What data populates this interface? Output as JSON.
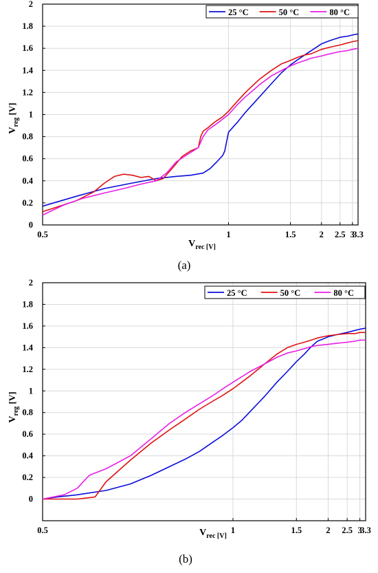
{
  "legend_labels": [
    "25 °C",
    "50 °C",
    "80 °C"
  ],
  "colors": {
    "25": "#0b0bdc",
    "50": "#e01010",
    "80": "#e61ee6",
    "grid": "#d9d9d9",
    "axis": "#000000"
  },
  "chart_data": [
    {
      "type": "line",
      "caption": "(a)",
      "ylabel": {
        "main": "V",
        "sub": "reg",
        "unit": "[V]"
      },
      "xlabel": {
        "main": "V",
        "sub": "rec [V]"
      },
      "xlim": [
        0.5,
        3.3
      ],
      "ylim": [
        0,
        2
      ],
      "x_scale": "reciprocal",
      "grid": true,
      "legend": "top-right",
      "xticks": [
        0.5,
        1,
        1.5,
        2,
        2.5,
        3,
        3.3
      ],
      "xtick_labels": [
        "0.5",
        "1",
        "1.5",
        "2",
        "2.5",
        "3",
        "3.3"
      ],
      "yticks": [
        0,
        0.2,
        0.4,
        0.6,
        0.8,
        1,
        1.2,
        1.4,
        1.6,
        1.8,
        2
      ],
      "ytick_labels": [
        "0",
        "0.2",
        "0.4",
        "0.6",
        "0.8",
        "1",
        "1.2",
        "1.4",
        "1.6",
        "1.8",
        "2"
      ],
      "series": [
        {
          "name": "25 °C",
          "color_key": "25",
          "x": [
            0.5,
            0.55,
            0.6,
            0.66,
            0.72,
            0.78,
            0.83,
            0.88,
            0.91,
            0.94,
            0.97,
            0.98,
            1.0,
            1.05,
            1.1,
            1.2,
            1.3,
            1.4,
            1.5,
            1.6,
            1.75,
            1.9,
            2.0,
            2.2,
            2.5,
            2.8,
            3.0,
            3.3
          ],
          "y": [
            0.17,
            0.26,
            0.33,
            0.38,
            0.42,
            0.44,
            0.45,
            0.47,
            0.51,
            0.57,
            0.63,
            0.67,
            0.84,
            0.93,
            1.02,
            1.16,
            1.28,
            1.38,
            1.45,
            1.5,
            1.56,
            1.61,
            1.64,
            1.67,
            1.7,
            1.71,
            1.72,
            1.73
          ]
        },
        {
          "name": "50 °C",
          "color_key": "50",
          "x": [
            0.5,
            0.55,
            0.58,
            0.6,
            0.62,
            0.64,
            0.66,
            0.68,
            0.7,
            0.72,
            0.74,
            0.77,
            0.8,
            0.83,
            0.86,
            0.87,
            0.88,
            0.9,
            0.93,
            0.97,
            1.0,
            1.05,
            1.1,
            1.2,
            1.3,
            1.4,
            1.5,
            1.6,
            1.7,
            1.8,
            2.0,
            2.2,
            2.5,
            2.8,
            3.0,
            3.3
          ],
          "y": [
            0.12,
            0.22,
            0.3,
            0.38,
            0.44,
            0.46,
            0.45,
            0.43,
            0.44,
            0.4,
            0.42,
            0.52,
            0.62,
            0.67,
            0.7,
            0.8,
            0.85,
            0.88,
            0.93,
            0.98,
            1.03,
            1.12,
            1.2,
            1.32,
            1.4,
            1.46,
            1.49,
            1.52,
            1.54,
            1.55,
            1.59,
            1.61,
            1.63,
            1.65,
            1.66,
            1.67
          ]
        },
        {
          "name": "80 °C",
          "color_key": "80",
          "x": [
            0.5,
            0.53,
            0.56,
            0.6,
            0.64,
            0.68,
            0.72,
            0.75,
            0.78,
            0.82,
            0.86,
            0.88,
            0.9,
            0.95,
            1.0,
            1.05,
            1.1,
            1.2,
            1.3,
            1.4,
            1.5,
            1.6,
            1.7,
            1.8,
            2.0,
            2.2,
            2.5,
            2.8,
            3.0,
            3.3
          ],
          "y": [
            0.09,
            0.18,
            0.24,
            0.29,
            0.33,
            0.37,
            0.4,
            0.47,
            0.57,
            0.64,
            0.7,
            0.8,
            0.86,
            0.93,
            1.0,
            1.09,
            1.16,
            1.27,
            1.35,
            1.4,
            1.44,
            1.47,
            1.49,
            1.51,
            1.53,
            1.55,
            1.57,
            1.58,
            1.59,
            1.6
          ]
        }
      ]
    },
    {
      "type": "line",
      "caption": "(b)",
      "ylabel": {
        "main": "V",
        "sub": "reg",
        "unit": "[V]"
      },
      "xlabel": {
        "main": "V",
        "sub": "rec [V]"
      },
      "xlim": [
        0.5,
        3.3
      ],
      "ylim": [
        -0.2,
        2
      ],
      "x_scale": "reciprocal",
      "grid": true,
      "legend": "top-right",
      "xticks": [
        0.5,
        1,
        1.5,
        2,
        2.5,
        3,
        3.3
      ],
      "xtick_labels": [
        "0.5",
        "1",
        "1.5",
        "2",
        "2.5",
        "3",
        "3.3"
      ],
      "yticks": [
        0,
        0.2,
        0.4,
        0.6,
        0.8,
        1,
        1.2,
        1.4,
        1.6,
        1.8,
        2
      ],
      "ytick_labels": [
        "0",
        "0.2",
        "0.4",
        "0.6",
        "0.8",
        "1",
        "1.2",
        "1.4",
        "1.6",
        "1.8",
        "2"
      ],
      "series": [
        {
          "name": "25 °C",
          "color_key": "25",
          "x": [
            0.5,
            0.52,
            0.55,
            0.6,
            0.65,
            0.7,
            0.75,
            0.8,
            0.85,
            0.9,
            0.95,
            1.0,
            1.05,
            1.1,
            1.2,
            1.3,
            1.4,
            1.5,
            1.6,
            1.7,
            1.8,
            1.9,
            2.0,
            2.2,
            2.5,
            2.8,
            3.0,
            3.3
          ],
          "y": [
            0.0,
            0.02,
            0.04,
            0.08,
            0.14,
            0.22,
            0.3,
            0.37,
            0.44,
            0.52,
            0.59,
            0.66,
            0.73,
            0.81,
            0.95,
            1.08,
            1.18,
            1.27,
            1.34,
            1.41,
            1.46,
            1.48,
            1.5,
            1.52,
            1.54,
            1.56,
            1.57,
            1.58
          ]
        },
        {
          "name": "50 °C",
          "color_key": "50",
          "x": [
            0.5,
            0.55,
            0.58,
            0.6,
            0.65,
            0.7,
            0.75,
            0.8,
            0.85,
            0.9,
            0.95,
            1.0,
            1.1,
            1.2,
            1.3,
            1.4,
            1.5,
            1.6,
            1.7,
            1.8,
            2.0,
            2.2,
            2.5,
            2.8,
            3.0,
            3.3
          ],
          "y": [
            0.0,
            0.0,
            0.02,
            0.16,
            0.36,
            0.52,
            0.64,
            0.74,
            0.83,
            0.9,
            0.96,
            1.02,
            1.14,
            1.25,
            1.34,
            1.4,
            1.43,
            1.45,
            1.47,
            1.49,
            1.51,
            1.52,
            1.53,
            1.53,
            1.54,
            1.54
          ]
        },
        {
          "name": "80 °C",
          "color_key": "80",
          "x": [
            0.5,
            0.53,
            0.55,
            0.57,
            0.6,
            0.65,
            0.7,
            0.75,
            0.8,
            0.85,
            0.9,
            0.95,
            1.0,
            1.1,
            1.2,
            1.3,
            1.4,
            1.5,
            1.6,
            1.7,
            1.8,
            2.0,
            2.2,
            2.5,
            2.8,
            3.0,
            3.3
          ],
          "y": [
            0.0,
            0.04,
            0.1,
            0.22,
            0.28,
            0.4,
            0.56,
            0.7,
            0.8,
            0.88,
            0.95,
            1.02,
            1.08,
            1.18,
            1.25,
            1.31,
            1.35,
            1.37,
            1.39,
            1.41,
            1.42,
            1.43,
            1.44,
            1.45,
            1.46,
            1.47,
            1.47
          ]
        }
      ]
    }
  ]
}
